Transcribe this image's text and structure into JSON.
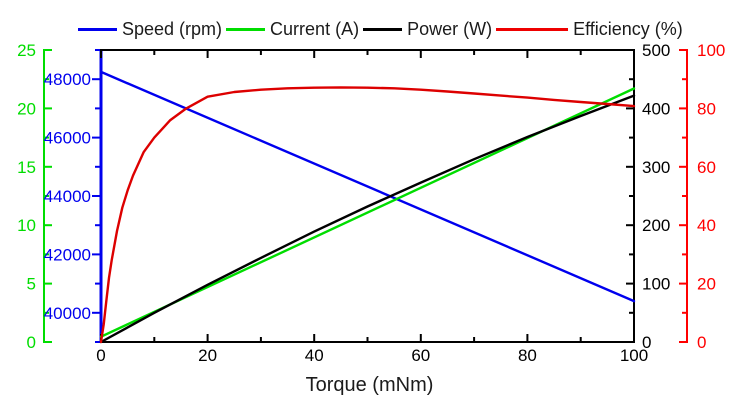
{
  "legend": {
    "items": [
      {
        "name": "speed",
        "label": "Speed (rpm)",
        "color": "#0000ee"
      },
      {
        "name": "current",
        "label": "Current (A)",
        "color": "#00dd00"
      },
      {
        "name": "power",
        "label": "Power (W)",
        "color": "#000000"
      },
      {
        "name": "efficiency",
        "label": "Efficiency (%)",
        "color": "#ee0000"
      }
    ]
  },
  "chart_data": {
    "type": "line",
    "title": "",
    "xlabel": "Torque (mNm)",
    "grid": false,
    "legend_position": "top",
    "x_axis": {
      "label": "Torque (mNm)",
      "range": [
        0,
        100
      ],
      "major_ticks": [
        0,
        20,
        40,
        60,
        80,
        100
      ],
      "minor_step": 10
    },
    "axes": {
      "current": {
        "label": "Current (A)",
        "side": "outer-left",
        "color": "#00dd00",
        "range": [
          0,
          25
        ],
        "major_ticks": [
          0,
          5,
          10,
          15,
          20,
          25
        ],
        "minor_step": 2.5
      },
      "speed": {
        "label": "Speed (rpm)",
        "side": "left",
        "color": "#0000ee",
        "range": [
          39000,
          49000
        ],
        "major_ticks": [
          40000,
          42000,
          44000,
          46000,
          48000
        ],
        "minor_step": 1000
      },
      "power": {
        "label": "Power (W)",
        "side": "right",
        "color": "#000000",
        "range": [
          0,
          500
        ],
        "major_ticks": [
          0,
          100,
          200,
          300,
          400,
          500
        ],
        "minor_step": 50
      },
      "efficiency": {
        "label": "Efficiency (%)",
        "side": "outer-right",
        "color": "#ff0000",
        "range": [
          0,
          100
        ],
        "major_ticks": [
          0,
          20,
          40,
          60,
          80,
          100
        ],
        "minor_step": 10
      }
    },
    "series": [
      {
        "name": "Speed (rpm)",
        "axis": "speed",
        "color": "#0000ee",
        "x": [
          0,
          100
        ],
        "y": [
          48250,
          40400
        ]
      },
      {
        "name": "Current (A)",
        "axis": "current",
        "color": "#00dd00",
        "x": [
          0,
          100
        ],
        "y": [
          0.45,
          21.7
        ]
      },
      {
        "name": "Power (W)",
        "axis": "power",
        "color": "#000000",
        "x": [
          0,
          10,
          20,
          30,
          40,
          50,
          60,
          70,
          80,
          90,
          100
        ],
        "y": [
          0,
          50,
          98,
          144,
          189,
          232,
          273,
          313,
          351,
          387,
          422
        ]
      },
      {
        "name": "Efficiency (%)",
        "axis": "efficiency",
        "color": "#dd0000",
        "x": [
          0,
          0.5,
          1,
          1.5,
          2,
          3,
          4,
          5,
          6,
          8,
          10,
          13,
          16,
          20,
          25,
          30,
          35,
          40,
          45,
          50,
          55,
          60,
          65,
          70,
          75,
          80,
          85,
          90,
          95,
          100
        ],
        "y": [
          0,
          6,
          14,
          22,
          28,
          38,
          46,
          52,
          57,
          65,
          70,
          76,
          80,
          84,
          85.6,
          86.4,
          86.9,
          87.1,
          87.2,
          87.1,
          86.9,
          86.4,
          85.8,
          85.1,
          84.4,
          83.7,
          82.9,
          82.2,
          81.5,
          80.8
        ]
      }
    ]
  }
}
